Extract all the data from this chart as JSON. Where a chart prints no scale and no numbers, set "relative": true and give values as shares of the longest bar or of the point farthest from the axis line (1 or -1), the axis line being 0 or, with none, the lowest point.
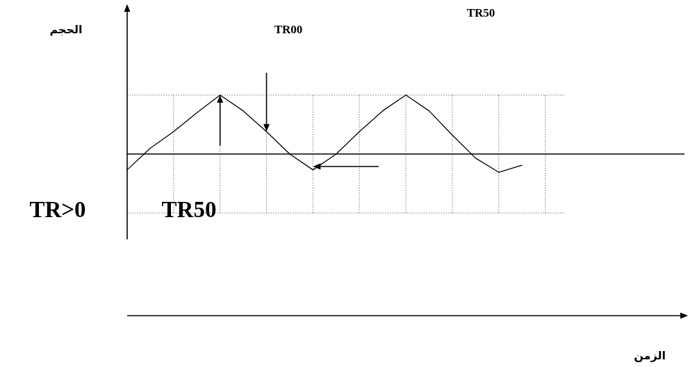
{
  "chart_data": {
    "type": "line",
    "relative": true,
    "color": "#000000",
    "grid": true,
    "annotations": [
      "الحجم",
      "TR00",
      "TR50",
      "TR>0",
      "TR50",
      "الزمن"
    ],
    "categories": [
      null,
      null,
      null,
      null,
      null,
      null,
      null,
      null,
      null,
      null,
      null,
      null,
      null,
      null,
      null,
      null,
      null,
      null
    ],
    "values": [
      -0.27,
      0.1,
      0.38,
      0.7,
      1,
      0.73,
      0.38,
      0,
      -0.27,
      0,
      0.38,
      0.73,
      1,
      0.73,
      0.32,
      -0.07,
      -0.31,
      -0.19
    ]
  }
}
